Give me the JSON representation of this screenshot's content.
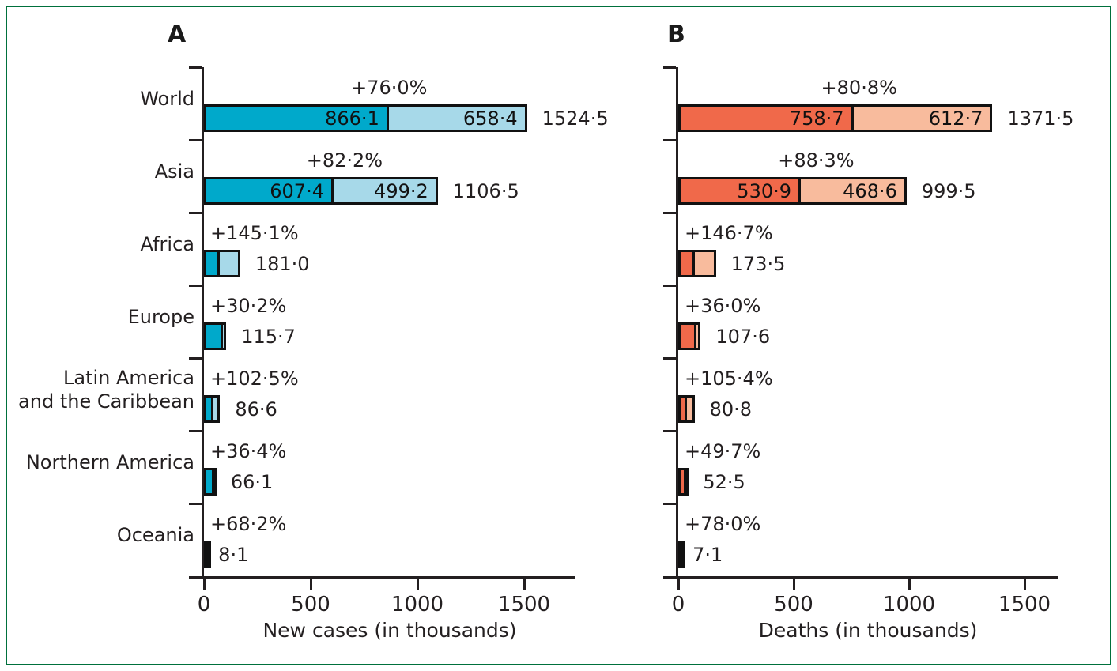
{
  "figure": {
    "background": "#FFFFFF",
    "border_color": "#00703C",
    "text_color": "#231F20"
  },
  "chart_data": [
    {
      "type": "bar",
      "orientation": "horizontal",
      "panel_letter": "A",
      "xlabel": "New cases (in thousands)",
      "xlim": [
        0,
        1740
      ],
      "xticks": [
        {
          "value": 0,
          "label": "0"
        },
        {
          "value": 500,
          "label": "500"
        },
        {
          "value": 1000,
          "label": "1000"
        },
        {
          "value": 1500,
          "label": "1500"
        }
      ],
      "grid": false,
      "legend": "none",
      "series_names": [
        "baseline",
        "projected increase"
      ],
      "colors": {
        "baseline": "#00A9CB",
        "increase": "#A7D9E9"
      },
      "rows": [
        {
          "category_lines": [
            "World"
          ],
          "baseline": 866.1,
          "increase": 658.4,
          "total": 1524.5,
          "baseline_label": "866·1",
          "increase_label": "658·4",
          "total_label": "1524·5",
          "percent_label": "+76·0%"
        },
        {
          "category_lines": [
            "Asia"
          ],
          "baseline": 607.4,
          "increase": 499.2,
          "total": 1106.5,
          "baseline_label": "607·4",
          "increase_label": "499·2",
          "total_label": "1106·5",
          "percent_label": "+82·2%"
        },
        {
          "category_lines": [
            "Africa"
          ],
          "baseline": 73.8,
          "increase": 107.2,
          "total": 181.0,
          "total_label": "181·0",
          "percent_label": "+145·1%"
        },
        {
          "category_lines": [
            "Europe"
          ],
          "baseline": 88.9,
          "increase": 26.8,
          "total": 115.7,
          "total_label": "115·7",
          "percent_label": "+30·2%"
        },
        {
          "category_lines": [
            "Latin America",
            "and the Caribbean"
          ],
          "baseline": 42.8,
          "increase": 43.8,
          "total": 86.6,
          "total_label": "86·6",
          "percent_label": "+102·5%"
        },
        {
          "category_lines": [
            "Northern America"
          ],
          "baseline": 48.5,
          "increase": 17.6,
          "total": 66.1,
          "total_label": "66·1",
          "percent_label": "+36·4%"
        },
        {
          "category_lines": [
            "Oceania"
          ],
          "baseline": 4.8,
          "increase": 3.3,
          "total": 8.1,
          "total_label": "8·1",
          "percent_label": "+68·2%"
        }
      ]
    },
    {
      "type": "bar",
      "orientation": "horizontal",
      "panel_letter": "B",
      "xlabel": "Deaths (in thousands)",
      "xlim": [
        0,
        1650
      ],
      "xticks": [
        {
          "value": 0,
          "label": "0"
        },
        {
          "value": 500,
          "label": "500"
        },
        {
          "value": 1000,
          "label": "1000"
        },
        {
          "value": 1500,
          "label": "1500"
        }
      ],
      "grid": false,
      "legend": "none",
      "series_names": [
        "baseline",
        "projected increase"
      ],
      "colors": {
        "baseline": "#F0694A",
        "increase": "#F8BB9D"
      },
      "rows": [
        {
          "category_lines": [
            "World"
          ],
          "baseline": 758.7,
          "increase": 612.7,
          "total": 1371.5,
          "baseline_label": "758·7",
          "increase_label": "612·7",
          "total_label": "1371·5",
          "percent_label": "+80·8%"
        },
        {
          "category_lines": [
            "Asia"
          ],
          "baseline": 530.9,
          "increase": 468.6,
          "total": 999.5,
          "baseline_label": "530·9",
          "increase_label": "468·6",
          "total_label": "999·5",
          "percent_label": "+88·3%"
        },
        {
          "category_lines": [
            "Africa"
          ],
          "baseline": 70.3,
          "increase": 103.2,
          "total": 173.5,
          "total_label": "173·5",
          "percent_label": "+146·7%"
        },
        {
          "category_lines": [
            "Europe"
          ],
          "baseline": 79.1,
          "increase": 28.5,
          "total": 107.6,
          "total_label": "107·6",
          "percent_label": "+36·0%"
        },
        {
          "category_lines": [
            "Latin America",
            "and the Caribbean"
          ],
          "baseline": 39.3,
          "increase": 41.5,
          "total": 80.8,
          "total_label": "80·8",
          "percent_label": "+105·4%"
        },
        {
          "category_lines": [
            "Northern America"
          ],
          "baseline": 35.1,
          "increase": 17.4,
          "total": 52.5,
          "total_label": "52·5",
          "percent_label": "+49·7%"
        },
        {
          "category_lines": [
            "Oceania"
          ],
          "baseline": 4.0,
          "increase": 3.1,
          "total": 7.1,
          "total_label": "7·1",
          "percent_label": "+78·0%"
        }
      ]
    }
  ]
}
